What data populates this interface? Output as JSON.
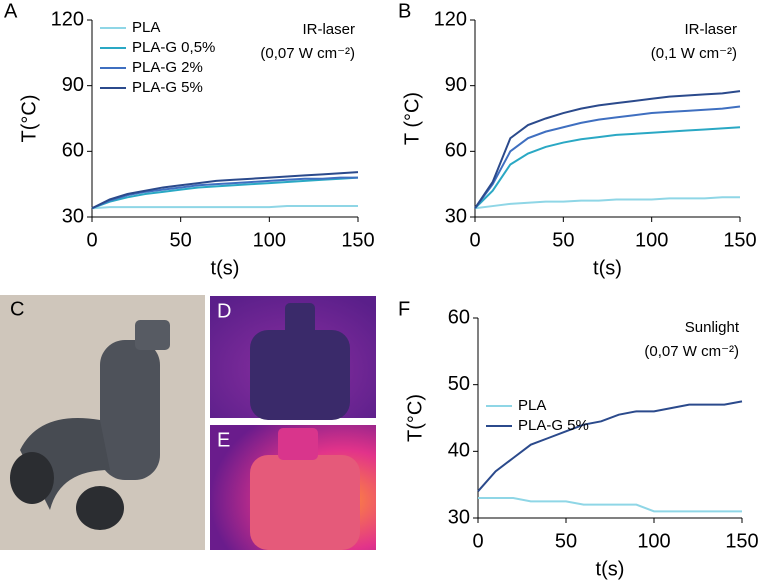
{
  "chart_data": [
    {
      "type": "line",
      "panel_label": "A",
      "x_label": "t(s)",
      "y_label": "T(°C)",
      "annotations": [
        "IR-laser",
        "(0,07 W cm⁻²)"
      ],
      "legend": "upper left",
      "x": [
        0,
        10,
        20,
        30,
        40,
        50,
        60,
        70,
        80,
        90,
        100,
        110,
        120,
        130,
        140,
        150
      ],
      "xlim": [
        0,
        150
      ],
      "xticks": [
        0,
        50,
        100,
        150
      ],
      "ylim": [
        30,
        120
      ],
      "yticks": [
        30,
        60,
        90,
        120
      ],
      "series": [
        {
          "name": "PLA",
          "color": "#8fd6e6",
          "values": [
            34,
            34.5,
            34.5,
            34.5,
            34.5,
            34.5,
            34.5,
            34.5,
            34.5,
            34.5,
            34.5,
            35,
            35,
            35,
            35,
            35
          ]
        },
        {
          "name": "PLA-G 0,5%",
          "color": "#2aa8c4",
          "values": [
            34,
            37,
            39,
            40.5,
            41.5,
            42.5,
            43.5,
            44,
            44.5,
            45,
            45.5,
            46,
            46.5,
            47,
            47.5,
            48
          ]
        },
        {
          "name": "PLA-G 2%",
          "color": "#3f6fc0",
          "values": [
            34,
            37.5,
            40,
            41.5,
            42.5,
            43.5,
            44.5,
            45,
            45.5,
            46,
            46.5,
            47,
            47.5,
            47.5,
            48,
            48
          ]
        },
        {
          "name": "PLA-G 5%",
          "color": "#2b4a8c",
          "values": [
            34,
            38,
            40.5,
            42,
            43.5,
            44.5,
            45.5,
            46.5,
            47,
            47.5,
            48,
            48.5,
            49,
            49.5,
            50,
            50.5
          ]
        }
      ]
    },
    {
      "type": "line",
      "panel_label": "B",
      "x_label": "t(s)",
      "y_label": "T (°C)",
      "annotations": [
        "IR-laser",
        "(0,1 W cm⁻²)"
      ],
      "x": [
        0,
        10,
        20,
        30,
        40,
        50,
        60,
        70,
        80,
        90,
        100,
        110,
        120,
        130,
        140,
        150
      ],
      "xlim": [
        0,
        150
      ],
      "xticks": [
        0,
        50,
        100,
        150
      ],
      "ylim": [
        30,
        120
      ],
      "yticks": [
        30,
        60,
        90,
        120
      ],
      "series": [
        {
          "color": "#8fd6e6",
          "values": [
            34,
            35,
            36,
            36.5,
            37,
            37,
            37.5,
            37.5,
            38,
            38,
            38,
            38.5,
            38.5,
            38.5,
            39,
            39
          ]
        },
        {
          "color": "#2aa8c4",
          "values": [
            34,
            42,
            54,
            59,
            62,
            64,
            65.5,
            66.5,
            67.5,
            68,
            68.5,
            69,
            69.5,
            70,
            70.5,
            71
          ]
        },
        {
          "color": "#3f6fc0",
          "values": [
            34,
            45,
            60,
            66,
            69,
            71,
            73,
            74.5,
            75.5,
            76.5,
            77.5,
            78,
            78.5,
            79,
            79.5,
            80.5
          ]
        },
        {
          "color": "#2b4a8c",
          "values": [
            34,
            46,
            66,
            72,
            75,
            77.5,
            79.5,
            81,
            82,
            83,
            84,
            85,
            85.5,
            86,
            86.5,
            87.5
          ]
        }
      ]
    },
    {
      "type": "line",
      "panel_label": "F",
      "x_label": "t(s)",
      "y_label": "T(°C)",
      "annotations": [
        "Sunlight",
        "(0,07 W cm⁻²)"
      ],
      "legend": "center left",
      "x": [
        0,
        10,
        20,
        30,
        40,
        50,
        60,
        70,
        80,
        90,
        100,
        110,
        120,
        130,
        140,
        150
      ],
      "xlim": [
        0,
        150
      ],
      "xticks": [
        0,
        50,
        100,
        150
      ],
      "ylim": [
        30,
        60
      ],
      "yticks": [
        30,
        40,
        50,
        60
      ],
      "series": [
        {
          "name": "PLA",
          "color": "#8fd6e6",
          "values": [
            33,
            33,
            33,
            32.5,
            32.5,
            32.5,
            32,
            32,
            32,
            32,
            31,
            31,
            31,
            31,
            31,
            31
          ]
        },
        {
          "name": "PLA-G 5%",
          "color": "#2b4a8c",
          "values": [
            34,
            37,
            39,
            41,
            42,
            43,
            44,
            44.5,
            45.5,
            46,
            46,
            46.5,
            47,
            47,
            47,
            47.5
          ]
        }
      ]
    }
  ],
  "images": [
    {
      "label": "C"
    },
    {
      "label": "D"
    },
    {
      "label": "E"
    }
  ]
}
